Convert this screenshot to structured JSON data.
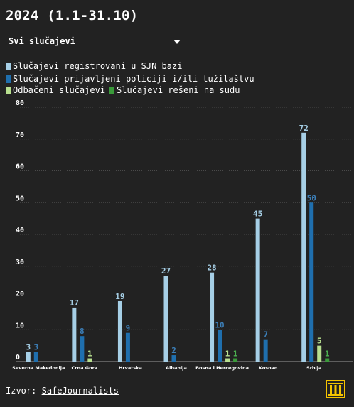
{
  "title": "2024 (1.1-31.10)",
  "filter": {
    "selected": "Svi slučajevi"
  },
  "legend": [
    {
      "label": "Slučajevi registrovani u SJN bazi",
      "color": "#a6cfe6"
    },
    {
      "label": "Slučajevi prijavljeni policiji i/ili tužilaštvu",
      "color": "#1f6fae"
    },
    {
      "label": "Odbačeni slučajevi",
      "color": "#b8e08f"
    },
    {
      "label": "Slučajevi rešeni na sudu",
      "color": "#3a9a3a"
    }
  ],
  "source": {
    "label": "Izvor:",
    "link_text": "SafeJournalists"
  },
  "chart_data": {
    "type": "bar",
    "categories": [
      "Severna Makedonija",
      "Crna Gora",
      "Hrvatska",
      "Albanija",
      "Bosna i Hercegovina",
      "Kosovo",
      "Srbija"
    ],
    "ylim": [
      0,
      80
    ],
    "yticks": [
      0,
      10,
      20,
      30,
      40,
      50,
      60,
      70,
      80
    ],
    "grid": true,
    "series": [
      {
        "name": "Slučajevi registrovani u SJN bazi",
        "color": "#a6cfe6",
        "label_color": "#a6cfe6",
        "values": [
          3,
          17,
          19,
          27,
          28,
          45,
          72
        ]
      },
      {
        "name": "Slučajevi prijavljeni policiji i/ili tužilaštvu",
        "color": "#1f6fae",
        "label_color": "#3c7fb8",
        "values": [
          3,
          8,
          9,
          2,
          10,
          7,
          50
        ]
      },
      {
        "name": "Odbačeni slučajevi",
        "color": "#b8e08f",
        "label_color": "#b8e08f",
        "values": [
          null,
          1,
          null,
          null,
          1,
          null,
          5
        ]
      },
      {
        "name": "Slučajevi rešeni na sudu",
        "color": "#3a9a3a",
        "label_color": "#4caf50",
        "values": [
          null,
          null,
          null,
          null,
          1,
          null,
          1
        ]
      }
    ]
  }
}
